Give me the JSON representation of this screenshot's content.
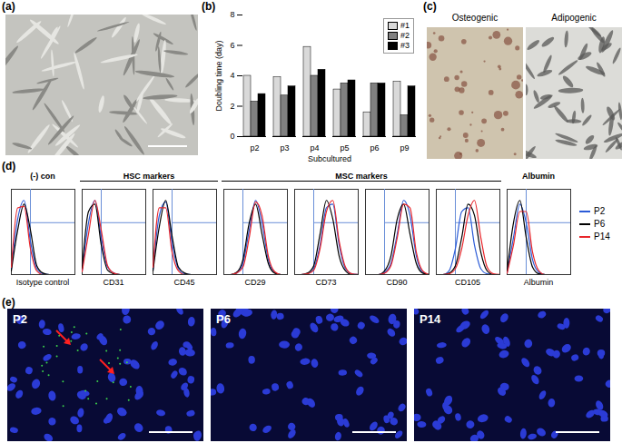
{
  "panel_labels": [
    "(a)",
    "(b)",
    "(c)",
    "(d)",
    "(e)"
  ],
  "chart_data": {
    "type": "bar",
    "ylabel": "Doubling time (day)",
    "xlabel": "Subcultured",
    "categories": [
      "p2",
      "p3",
      "p4",
      "p5",
      "p6",
      "p9"
    ],
    "series": [
      {
        "name": "#1",
        "color": "#d9d9d9",
        "values": [
          4.0,
          3.9,
          5.9,
          3.1,
          1.6,
          3.6
        ]
      },
      {
        "name": "#2",
        "color": "#808080",
        "values": [
          2.3,
          2.7,
          4.0,
          3.5,
          3.5,
          1.4
        ]
      },
      {
        "name": "#3",
        "color": "#000000",
        "values": [
          2.8,
          3.3,
          4.4,
          3.7,
          3.5,
          3.3
        ]
      }
    ],
    "ylim": [
      0,
      8
    ],
    "yticks": [
      0,
      2,
      4,
      6,
      8
    ],
    "legend": "top-right"
  },
  "panel_c": {
    "images": [
      "Osteogenic",
      "Adipogenic"
    ]
  },
  "flow": {
    "groups": [
      {
        "title": "(-) con",
        "from": 0,
        "to": 0
      },
      {
        "title": "HSC markers",
        "from": 1,
        "to": 2
      },
      {
        "title": "MSC markers",
        "from": 3,
        "to": 6
      },
      {
        "title": "Albumin",
        "from": 7,
        "to": 7
      }
    ],
    "legend": [
      {
        "name": "P2",
        "color": "#2b5bd7"
      },
      {
        "name": "P6",
        "color": "#000000"
      },
      {
        "name": "P14",
        "color": "#e8262b"
      }
    ],
    "x": [
      0,
      1,
      2,
      3,
      4,
      5,
      6,
      7,
      8,
      9,
      10
    ],
    "xlim": [
      0,
      10
    ],
    "ylim": [
      0,
      1.15
    ],
    "gate": {
      "x": 3,
      "y": 0.7
    },
    "panels": [
      {
        "label": "Isotype control",
        "series": [
          [
            0.08,
            0.75,
            1.0,
            0.45,
            0.08,
            0.01,
            0,
            0,
            0,
            0,
            0
          ],
          [
            0.05,
            0.6,
            0.95,
            0.6,
            0.12,
            0.02,
            0,
            0,
            0,
            0,
            0
          ],
          [
            0.1,
            0.9,
            0.92,
            0.35,
            0.05,
            0,
            0,
            0,
            0,
            0,
            0
          ]
        ]
      },
      {
        "label": "CD31",
        "series": [
          [
            0.05,
            0.7,
            1.0,
            0.5,
            0.1,
            0.02,
            0,
            0,
            0,
            0,
            0
          ],
          [
            0.08,
            0.85,
            0.95,
            0.4,
            0.06,
            0.01,
            0,
            0,
            0,
            0,
            0
          ],
          [
            0.04,
            0.55,
            1.0,
            0.6,
            0.12,
            0.02,
            0,
            0,
            0,
            0,
            0
          ]
        ]
      },
      {
        "label": "CD45",
        "series": [
          [
            0.06,
            0.8,
            0.98,
            0.42,
            0.08,
            0.01,
            0,
            0,
            0,
            0,
            0
          ],
          [
            0.05,
            0.65,
            1.0,
            0.52,
            0.1,
            0.02,
            0,
            0,
            0,
            0,
            0
          ],
          [
            0.1,
            0.9,
            0.9,
            0.3,
            0.05,
            0,
            0,
            0,
            0,
            0,
            0
          ]
        ]
      },
      {
        "label": "CD29",
        "series": [
          [
            0,
            0,
            0.02,
            0.15,
            0.6,
            1.0,
            0.7,
            0.2,
            0.03,
            0,
            0
          ],
          [
            0,
            0,
            0.03,
            0.2,
            0.7,
            0.95,
            0.55,
            0.15,
            0.02,
            0,
            0
          ],
          [
            0,
            0,
            0.02,
            0.1,
            0.5,
            0.98,
            0.8,
            0.25,
            0.04,
            0,
            0
          ]
        ]
      },
      {
        "label": "CD73",
        "series": [
          [
            0,
            0,
            0.01,
            0.08,
            0.4,
            0.9,
            0.95,
            0.4,
            0.08,
            0.01,
            0
          ],
          [
            0,
            0,
            0.02,
            0.12,
            0.55,
            1.0,
            0.75,
            0.25,
            0.05,
            0,
            0
          ],
          [
            0,
            0,
            0.01,
            0.06,
            0.35,
            0.85,
            1.0,
            0.45,
            0.1,
            0.01,
            0
          ]
        ]
      },
      {
        "label": "CD90",
        "series": [
          [
            0,
            0,
            0,
            0.03,
            0.15,
            0.55,
            1.0,
            0.8,
            0.25,
            0.03,
            0
          ],
          [
            0,
            0,
            0,
            0.05,
            0.25,
            0.75,
            0.95,
            0.55,
            0.15,
            0.02,
            0
          ],
          [
            0,
            0,
            0,
            0.02,
            0.12,
            0.5,
            0.95,
            0.9,
            0.3,
            0.05,
            0
          ]
        ]
      },
      {
        "label": "CD105",
        "series": [
          [
            0,
            0,
            0.05,
            0.35,
            0.85,
            0.9,
            0.4,
            0.08,
            0.01,
            0,
            0
          ],
          [
            0,
            0,
            0.02,
            0.12,
            0.5,
            0.95,
            0.8,
            0.3,
            0.05,
            0,
            0
          ],
          [
            0,
            0,
            0.01,
            0.08,
            0.35,
            0.8,
            1.0,
            0.5,
            0.1,
            0.01,
            0
          ]
        ]
      },
      {
        "label": "Albumin",
        "series": [
          [
            0.03,
            0.5,
            0.95,
            0.7,
            0.2,
            0.03,
            0,
            0,
            0,
            0,
            0
          ],
          [
            0.05,
            0.7,
            1.0,
            0.5,
            0.1,
            0.01,
            0,
            0,
            0,
            0,
            0
          ],
          [
            0.02,
            0.4,
            0.85,
            0.85,
            0.3,
            0.05,
            0,
            0,
            0,
            0,
            0
          ]
        ]
      }
    ]
  },
  "panel_e": {
    "images": [
      "P2",
      "P6",
      "P14"
    ]
  }
}
